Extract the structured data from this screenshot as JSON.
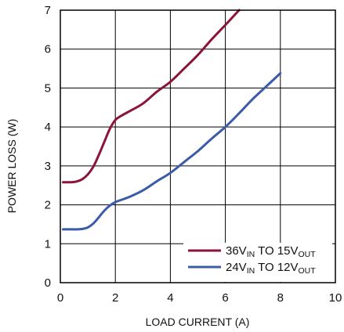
{
  "chart_data": {
    "type": "line",
    "xlabel": "LOAD CURRENT (A)",
    "ylabel": "POWER LOSS (W)",
    "xlim": [
      0,
      10
    ],
    "ylim": [
      0,
      7
    ],
    "xticks": [
      "0",
      "2",
      "4",
      "6",
      "8",
      "10"
    ],
    "yticks": [
      "0",
      "1",
      "2",
      "3",
      "4",
      "5",
      "6",
      "7"
    ],
    "grid": true,
    "legend_position": "bottom-right",
    "series": [
      {
        "name": "36VIN TO 15VOUT",
        "legend": {
          "p1": "36V",
          "s1": "IN",
          "p2": " TO 15V",
          "s2": "OUT"
        },
        "color": "#8b1538",
        "x": [
          0.1,
          0.4,
          0.6,
          0.8,
          1.0,
          1.2,
          1.4,
          1.6,
          1.8,
          2.0,
          2.2,
          2.5,
          3.0,
          3.5,
          4.0,
          4.5,
          5.0,
          5.5,
          6.0,
          6.5
        ],
        "y": [
          2.58,
          2.58,
          2.6,
          2.66,
          2.78,
          2.98,
          3.28,
          3.62,
          3.95,
          4.18,
          4.28,
          4.4,
          4.6,
          4.9,
          5.16,
          5.5,
          5.85,
          6.25,
          6.62,
          7.0
        ]
      },
      {
        "name": "24VIN TO 12VOUT",
        "legend": {
          "p1": "24V",
          "s1": "IN",
          "p2": " TO 12V",
          "s2": "OUT"
        },
        "color": "#3b5ba8",
        "x": [
          0.1,
          0.4,
          0.6,
          0.8,
          1.0,
          1.2,
          1.4,
          1.6,
          1.8,
          2.0,
          2.5,
          3.0,
          3.5,
          4.0,
          4.5,
          5.0,
          5.5,
          6.0,
          6.5,
          7.0,
          7.5,
          8.0
        ],
        "y": [
          1.37,
          1.37,
          1.37,
          1.38,
          1.42,
          1.52,
          1.68,
          1.85,
          1.98,
          2.07,
          2.2,
          2.37,
          2.6,
          2.82,
          3.1,
          3.38,
          3.7,
          4.0,
          4.35,
          4.72,
          5.05,
          5.38
        ]
      }
    ]
  }
}
